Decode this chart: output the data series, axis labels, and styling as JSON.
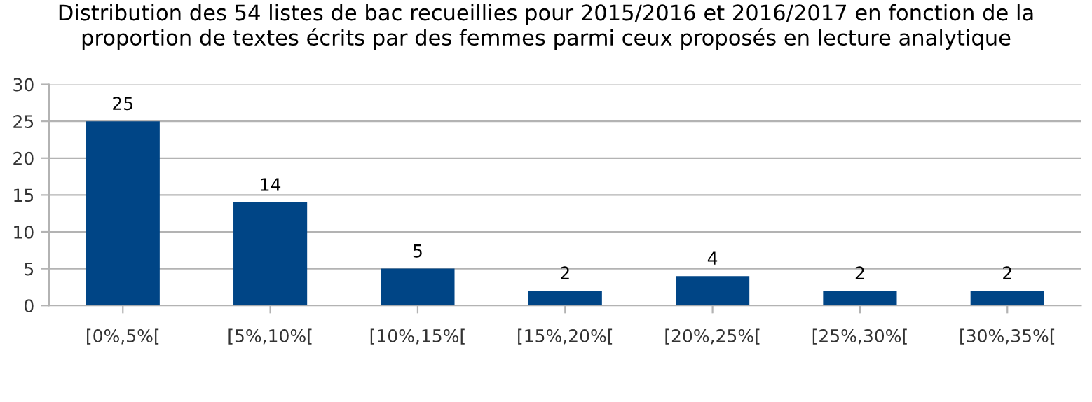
{
  "chart_data": {
    "type": "bar",
    "title": "Distribution des 54 listes de bac recueillies pour 2015/2016 et 2016/2017 en fonction de la proportion de textes écrits par des femmes parmi ceux proposés en lecture analytique",
    "categories": [
      "[0%,5%[",
      "[5%,10%[",
      "[10%,15%[",
      "[15%,20%[",
      "[20%,25%[",
      "[25%,30%[",
      "[30%,35%["
    ],
    "values": [
      25,
      14,
      5,
      2,
      4,
      2,
      2
    ],
    "color": "#004586",
    "ylim": [
      0,
      30
    ],
    "yticks": [
      0,
      5,
      10,
      15,
      20,
      25,
      30
    ],
    "grid": "y",
    "data_labels": true
  }
}
